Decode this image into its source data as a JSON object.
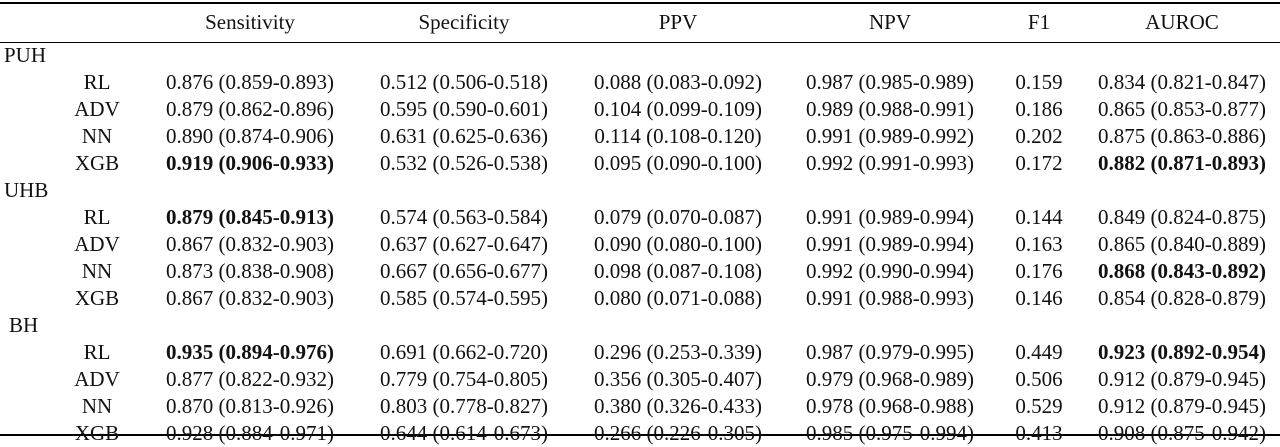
{
  "columns": [
    "Sensitivity",
    "Specificity",
    "PPV",
    "NPV",
    "F1",
    "AUROC"
  ],
  "groups": [
    {
      "name": "PUH",
      "rows": [
        {
          "model": "RL",
          "sensitivity": "0.876 (0.859-0.893)",
          "specificity": "0.512 (0.506-0.518)",
          "ppv": "0.088 (0.083-0.092)",
          "npv": "0.987 (0.985-0.989)",
          "f1": "0.159",
          "auroc": "0.834 (0.821-0.847)"
        },
        {
          "model": "ADV",
          "sensitivity": "0.879 (0.862-0.896)",
          "specificity": "0.595 (0.590-0.601)",
          "ppv": "0.104 (0.099-0.109)",
          "npv": "0.989 (0.988-0.991)",
          "f1": "0.186",
          "auroc": "0.865 (0.853-0.877)"
        },
        {
          "model": "NN",
          "sensitivity": "0.890 (0.874-0.906)",
          "specificity": "0.631 (0.625-0.636)",
          "ppv": "0.114 (0.108-0.120)",
          "npv": "0.991 (0.989-0.992)",
          "f1": "0.202",
          "auroc": "0.875 (0.863-0.886)"
        },
        {
          "model": "XGB",
          "sensitivity": "0.919 (0.906-0.933)",
          "specificity": "0.532 (0.526-0.538)",
          "ppv": "0.095 (0.090-0.100)",
          "npv": "0.992 (0.991-0.993)",
          "f1": "0.172",
          "auroc": "0.882 (0.871-0.893)"
        }
      ]
    },
    {
      "name": "UHB",
      "rows": [
        {
          "model": "RL",
          "sensitivity": "0.879 (0.845-0.913)",
          "specificity": "0.574 (0.563-0.584)",
          "ppv": "0.079 (0.070-0.087)",
          "npv": "0.991 (0.989-0.994)",
          "f1": "0.144",
          "auroc": "0.849 (0.824-0.875)"
        },
        {
          "model": "ADV",
          "sensitivity": "0.867 (0.832-0.903)",
          "specificity": "0.637 (0.627-0.647)",
          "ppv": "0.090 (0.080-0.100)",
          "npv": "0.991 (0.989-0.994)",
          "f1": "0.163",
          "auroc": "0.865 (0.840-0.889)"
        },
        {
          "model": "NN",
          "sensitivity": "0.873 (0.838-0.908)",
          "specificity": "0.667 (0.656-0.677)",
          "ppv": "0.098 (0.087-0.108)",
          "npv": "0.992 (0.990-0.994)",
          "f1": "0.176",
          "auroc": "0.868 (0.843-0.892)"
        },
        {
          "model": "XGB",
          "sensitivity": "0.867 (0.832-0.903)",
          "specificity": "0.585 (0.574-0.595)",
          "ppv": "0.080 (0.071-0.088)",
          "npv": "0.991 (0.988-0.993)",
          "f1": "0.146",
          "auroc": "0.854 (0.828-0.879)"
        }
      ]
    },
    {
      "name": "BH",
      "rows": [
        {
          "model": "RL",
          "sensitivity": "0.935 (0.894-0.976)",
          "specificity": "0.691 (0.662-0.720)",
          "ppv": "0.296 (0.253-0.339)",
          "npv": "0.987 (0.979-0.995)",
          "f1": "0.449",
          "auroc": "0.923 (0.892-0.954)"
        },
        {
          "model": "ADV",
          "sensitivity": "0.877 (0.822-0.932)",
          "specificity": "0.779 (0.754-0.805)",
          "ppv": "0.356 (0.305-0.407)",
          "npv": "0.979 (0.968-0.989)",
          "f1": "0.506",
          "auroc": "0.912 (0.879-0.945)"
        },
        {
          "model": "NN",
          "sensitivity": "0.870 (0.813-0.926)",
          "specificity": "0.803 (0.778-0.827)",
          "ppv": "0.380 (0.326-0.433)",
          "npv": "0.978 (0.968-0.988)",
          "f1": "0.529",
          "auroc": "0.912 (0.879-0.945)"
        },
        {
          "model": "XGB",
          "sensitivity": "0.928 (0.884-0.971)",
          "specificity": "0.644 (0.614-0.673)",
          "ppv": "0.266 (0.226-0.305)",
          "npv": "0.985 (0.975-0.994)",
          "f1": "0.413",
          "auroc": "0.908 (0.875-0.942)"
        }
      ]
    }
  ]
}
